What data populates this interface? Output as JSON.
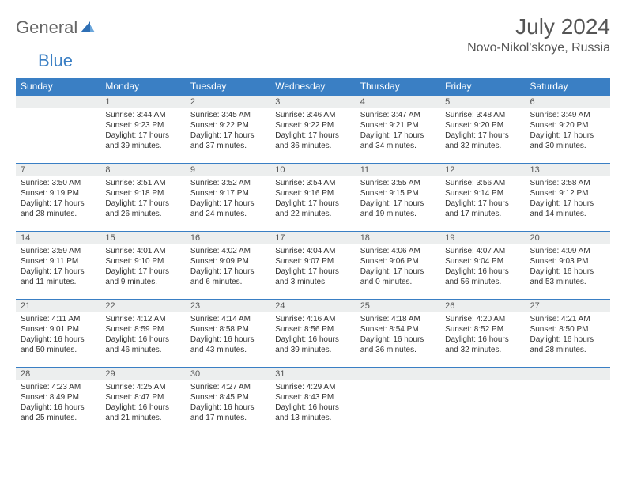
{
  "brand": {
    "part1": "General",
    "part2": "Blue"
  },
  "title": "July 2024",
  "location": "Novo-Nikol'skoye, Russia",
  "colors": {
    "header_bg": "#3a7fc4",
    "header_text": "#ffffff",
    "daynum_bg": "#eceeee",
    "border": "#3a7fc4",
    "text": "#333333"
  },
  "weekdays": [
    "Sunday",
    "Monday",
    "Tuesday",
    "Wednesday",
    "Thursday",
    "Friday",
    "Saturday"
  ],
  "weeks": [
    [
      null,
      {
        "n": "1",
        "sr": "Sunrise: 3:44 AM",
        "ss": "Sunset: 9:23 PM",
        "d1": "Daylight: 17 hours",
        "d2": "and 39 minutes."
      },
      {
        "n": "2",
        "sr": "Sunrise: 3:45 AM",
        "ss": "Sunset: 9:22 PM",
        "d1": "Daylight: 17 hours",
        "d2": "and 37 minutes."
      },
      {
        "n": "3",
        "sr": "Sunrise: 3:46 AM",
        "ss": "Sunset: 9:22 PM",
        "d1": "Daylight: 17 hours",
        "d2": "and 36 minutes."
      },
      {
        "n": "4",
        "sr": "Sunrise: 3:47 AM",
        "ss": "Sunset: 9:21 PM",
        "d1": "Daylight: 17 hours",
        "d2": "and 34 minutes."
      },
      {
        "n": "5",
        "sr": "Sunrise: 3:48 AM",
        "ss": "Sunset: 9:20 PM",
        "d1": "Daylight: 17 hours",
        "d2": "and 32 minutes."
      },
      {
        "n": "6",
        "sr": "Sunrise: 3:49 AM",
        "ss": "Sunset: 9:20 PM",
        "d1": "Daylight: 17 hours",
        "d2": "and 30 minutes."
      }
    ],
    [
      {
        "n": "7",
        "sr": "Sunrise: 3:50 AM",
        "ss": "Sunset: 9:19 PM",
        "d1": "Daylight: 17 hours",
        "d2": "and 28 minutes."
      },
      {
        "n": "8",
        "sr": "Sunrise: 3:51 AM",
        "ss": "Sunset: 9:18 PM",
        "d1": "Daylight: 17 hours",
        "d2": "and 26 minutes."
      },
      {
        "n": "9",
        "sr": "Sunrise: 3:52 AM",
        "ss": "Sunset: 9:17 PM",
        "d1": "Daylight: 17 hours",
        "d2": "and 24 minutes."
      },
      {
        "n": "10",
        "sr": "Sunrise: 3:54 AM",
        "ss": "Sunset: 9:16 PM",
        "d1": "Daylight: 17 hours",
        "d2": "and 22 minutes."
      },
      {
        "n": "11",
        "sr": "Sunrise: 3:55 AM",
        "ss": "Sunset: 9:15 PM",
        "d1": "Daylight: 17 hours",
        "d2": "and 19 minutes."
      },
      {
        "n": "12",
        "sr": "Sunrise: 3:56 AM",
        "ss": "Sunset: 9:14 PM",
        "d1": "Daylight: 17 hours",
        "d2": "and 17 minutes."
      },
      {
        "n": "13",
        "sr": "Sunrise: 3:58 AM",
        "ss": "Sunset: 9:12 PM",
        "d1": "Daylight: 17 hours",
        "d2": "and 14 minutes."
      }
    ],
    [
      {
        "n": "14",
        "sr": "Sunrise: 3:59 AM",
        "ss": "Sunset: 9:11 PM",
        "d1": "Daylight: 17 hours",
        "d2": "and 11 minutes."
      },
      {
        "n": "15",
        "sr": "Sunrise: 4:01 AM",
        "ss": "Sunset: 9:10 PM",
        "d1": "Daylight: 17 hours",
        "d2": "and 9 minutes."
      },
      {
        "n": "16",
        "sr": "Sunrise: 4:02 AM",
        "ss": "Sunset: 9:09 PM",
        "d1": "Daylight: 17 hours",
        "d2": "and 6 minutes."
      },
      {
        "n": "17",
        "sr": "Sunrise: 4:04 AM",
        "ss": "Sunset: 9:07 PM",
        "d1": "Daylight: 17 hours",
        "d2": "and 3 minutes."
      },
      {
        "n": "18",
        "sr": "Sunrise: 4:06 AM",
        "ss": "Sunset: 9:06 PM",
        "d1": "Daylight: 17 hours",
        "d2": "and 0 minutes."
      },
      {
        "n": "19",
        "sr": "Sunrise: 4:07 AM",
        "ss": "Sunset: 9:04 PM",
        "d1": "Daylight: 16 hours",
        "d2": "and 56 minutes."
      },
      {
        "n": "20",
        "sr": "Sunrise: 4:09 AM",
        "ss": "Sunset: 9:03 PM",
        "d1": "Daylight: 16 hours",
        "d2": "and 53 minutes."
      }
    ],
    [
      {
        "n": "21",
        "sr": "Sunrise: 4:11 AM",
        "ss": "Sunset: 9:01 PM",
        "d1": "Daylight: 16 hours",
        "d2": "and 50 minutes."
      },
      {
        "n": "22",
        "sr": "Sunrise: 4:12 AM",
        "ss": "Sunset: 8:59 PM",
        "d1": "Daylight: 16 hours",
        "d2": "and 46 minutes."
      },
      {
        "n": "23",
        "sr": "Sunrise: 4:14 AM",
        "ss": "Sunset: 8:58 PM",
        "d1": "Daylight: 16 hours",
        "d2": "and 43 minutes."
      },
      {
        "n": "24",
        "sr": "Sunrise: 4:16 AM",
        "ss": "Sunset: 8:56 PM",
        "d1": "Daylight: 16 hours",
        "d2": "and 39 minutes."
      },
      {
        "n": "25",
        "sr": "Sunrise: 4:18 AM",
        "ss": "Sunset: 8:54 PM",
        "d1": "Daylight: 16 hours",
        "d2": "and 36 minutes."
      },
      {
        "n": "26",
        "sr": "Sunrise: 4:20 AM",
        "ss": "Sunset: 8:52 PM",
        "d1": "Daylight: 16 hours",
        "d2": "and 32 minutes."
      },
      {
        "n": "27",
        "sr": "Sunrise: 4:21 AM",
        "ss": "Sunset: 8:50 PM",
        "d1": "Daylight: 16 hours",
        "d2": "and 28 minutes."
      }
    ],
    [
      {
        "n": "28",
        "sr": "Sunrise: 4:23 AM",
        "ss": "Sunset: 8:49 PM",
        "d1": "Daylight: 16 hours",
        "d2": "and 25 minutes."
      },
      {
        "n": "29",
        "sr": "Sunrise: 4:25 AM",
        "ss": "Sunset: 8:47 PM",
        "d1": "Daylight: 16 hours",
        "d2": "and 21 minutes."
      },
      {
        "n": "30",
        "sr": "Sunrise: 4:27 AM",
        "ss": "Sunset: 8:45 PM",
        "d1": "Daylight: 16 hours",
        "d2": "and 17 minutes."
      },
      {
        "n": "31",
        "sr": "Sunrise: 4:29 AM",
        "ss": "Sunset: 8:43 PM",
        "d1": "Daylight: 16 hours",
        "d2": "and 13 minutes."
      },
      null,
      null,
      null
    ]
  ]
}
